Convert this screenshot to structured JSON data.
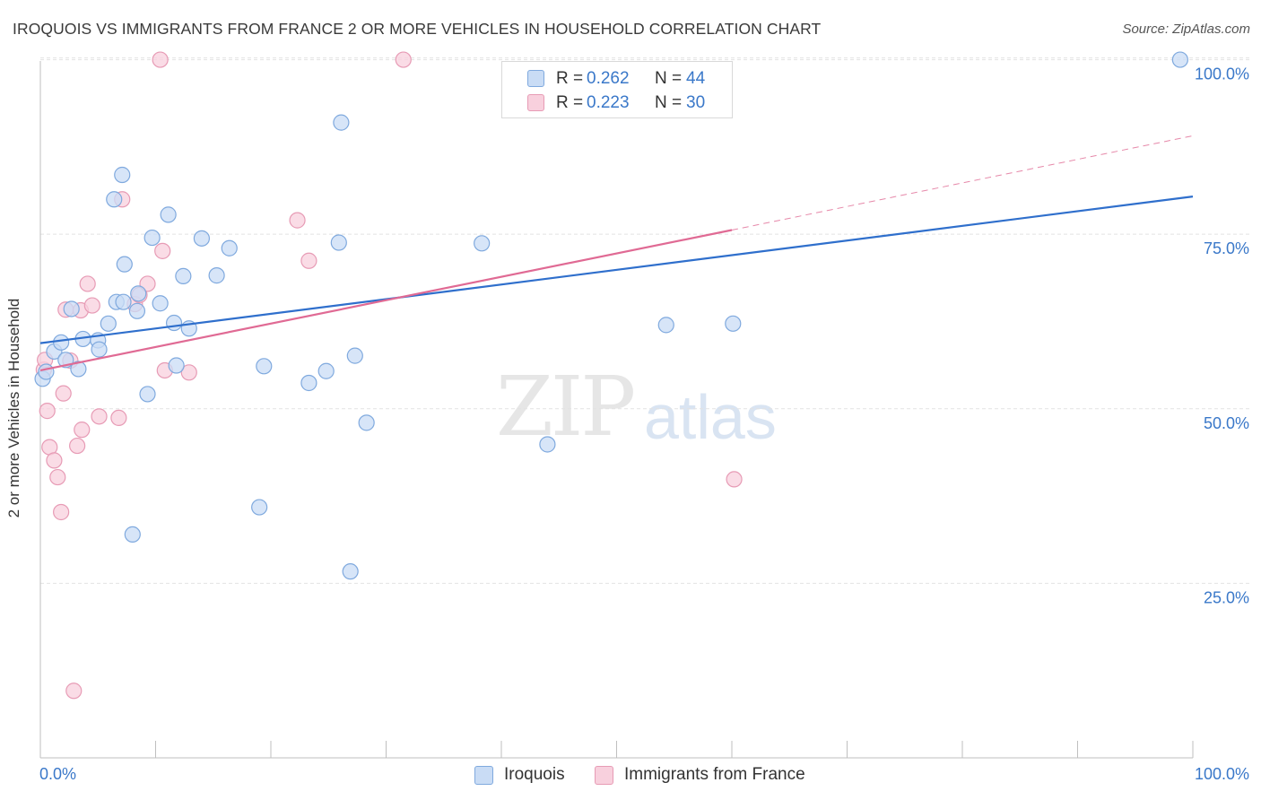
{
  "header": {
    "title": "IROQUOIS VS IMMIGRANTS FROM FRANCE 2 OR MORE VEHICLES IN HOUSEHOLD CORRELATION CHART",
    "source": "Source: ZipAtlas.com"
  },
  "watermark": {
    "zip": "ZIP",
    "atlas": "atlas"
  },
  "stats": [
    {
      "r_label": "R =",
      "r_value": "0.262",
      "n_label": "N =",
      "n_value": "44"
    },
    {
      "r_label": "R =",
      "r_value": "0.223",
      "n_label": "N =",
      "n_value": "30"
    }
  ],
  "legend": [
    {
      "label": "Iroquois"
    },
    {
      "label": "Immigrants from France"
    }
  ],
  "colors": {
    "iroquois_fill": "#c9dcf5",
    "iroquois_stroke": "#7fa9de",
    "iroquois_line": "#2f6fcc",
    "france_fill": "#f8d0dd",
    "france_stroke": "#e79bb5",
    "france_line": "#e06a94",
    "axis_tick_label": "#3a78c9",
    "grid": "#e2e2e2"
  },
  "chart_data": {
    "type": "scatter",
    "title": "IROQUOIS VS IMMIGRANTS FROM FRANCE 2 OR MORE VEHICLES IN HOUSEHOLD CORRELATION CHART",
    "xlabel": "",
    "ylabel": "2 or more Vehicles in Household",
    "xlim": [
      0,
      100
    ],
    "ylim": [
      0,
      102
    ],
    "x_tick_labels": [
      "0.0%",
      "100.0%"
    ],
    "y_ticks": [
      25,
      50,
      75,
      100
    ],
    "y_tick_labels": [
      "25.0%",
      "50.0%",
      "75.0%",
      "100.0%"
    ],
    "grid": true,
    "legend_position": "bottom",
    "series": [
      {
        "name": "Iroquois",
        "points": [
          [
            0.2,
            54.3
          ],
          [
            0.5,
            55.3
          ],
          [
            1.2,
            58.2
          ],
          [
            1.8,
            59.5
          ],
          [
            2.2,
            57.0
          ],
          [
            2.7,
            64.3
          ],
          [
            3.3,
            55.7
          ],
          [
            3.7,
            60.0
          ],
          [
            5.0,
            59.8
          ],
          [
            5.1,
            58.5
          ],
          [
            5.9,
            62.2
          ],
          [
            6.4,
            80.0
          ],
          [
            6.6,
            65.3
          ],
          [
            7.1,
            83.5
          ],
          [
            7.2,
            65.3
          ],
          [
            7.3,
            70.7
          ],
          [
            8.0,
            32.0
          ],
          [
            8.4,
            64.0
          ],
          [
            8.5,
            66.5
          ],
          [
            9.3,
            52.1
          ],
          [
            9.7,
            74.5
          ],
          [
            10.4,
            65.1
          ],
          [
            11.1,
            77.8
          ],
          [
            11.6,
            62.3
          ],
          [
            11.8,
            56.2
          ],
          [
            12.4,
            69.0
          ],
          [
            12.9,
            61.5
          ],
          [
            14.0,
            74.4
          ],
          [
            15.3,
            69.1
          ],
          [
            16.4,
            73.0
          ],
          [
            19.0,
            35.9
          ],
          [
            19.4,
            56.1
          ],
          [
            23.3,
            53.7
          ],
          [
            24.8,
            55.4
          ],
          [
            25.9,
            73.8
          ],
          [
            26.1,
            91.0
          ],
          [
            26.9,
            26.7
          ],
          [
            27.3,
            57.6
          ],
          [
            28.3,
            48.0
          ],
          [
            38.3,
            73.7
          ],
          [
            44.0,
            44.9
          ],
          [
            54.3,
            62.0
          ],
          [
            60.1,
            62.2
          ],
          [
            98.9,
            100.0
          ]
        ]
      },
      {
        "name": "Immigrants from France",
        "points": [
          [
            0.3,
            55.6
          ],
          [
            0.4,
            57.0
          ],
          [
            0.6,
            49.7
          ],
          [
            0.8,
            44.5
          ],
          [
            1.2,
            42.6
          ],
          [
            1.5,
            40.2
          ],
          [
            1.8,
            35.2
          ],
          [
            2.0,
            52.2
          ],
          [
            2.2,
            64.2
          ],
          [
            2.6,
            56.9
          ],
          [
            2.9,
            9.6
          ],
          [
            3.2,
            44.7
          ],
          [
            3.5,
            64.1
          ],
          [
            3.6,
            47.0
          ],
          [
            4.1,
            67.9
          ],
          [
            4.5,
            64.8
          ],
          [
            5.1,
            48.9
          ],
          [
            6.8,
            48.7
          ],
          [
            7.1,
            80.0
          ],
          [
            8.2,
            65.0
          ],
          [
            8.6,
            66.3
          ],
          [
            9.3,
            67.9
          ],
          [
            10.4,
            100.0
          ],
          [
            10.6,
            72.6
          ],
          [
            10.8,
            55.5
          ],
          [
            12.9,
            55.2
          ],
          [
            22.3,
            77.0
          ],
          [
            23.3,
            71.2
          ],
          [
            31.5,
            100.0
          ],
          [
            60.2,
            39.9
          ]
        ]
      }
    ],
    "trend_lines": [
      {
        "name": "Iroquois",
        "x": [
          0,
          100
        ],
        "y": [
          59.4,
          80.4
        ],
        "style": "solid"
      },
      {
        "name": "Immigrants from France",
        "x": [
          0,
          60
        ],
        "y": [
          55.5,
          75.6
        ],
        "style": "solid"
      },
      {
        "name": "Immigrants from France",
        "x": [
          60,
          100
        ],
        "y": [
          75.6,
          89.1
        ],
        "style": "dashed"
      }
    ]
  }
}
